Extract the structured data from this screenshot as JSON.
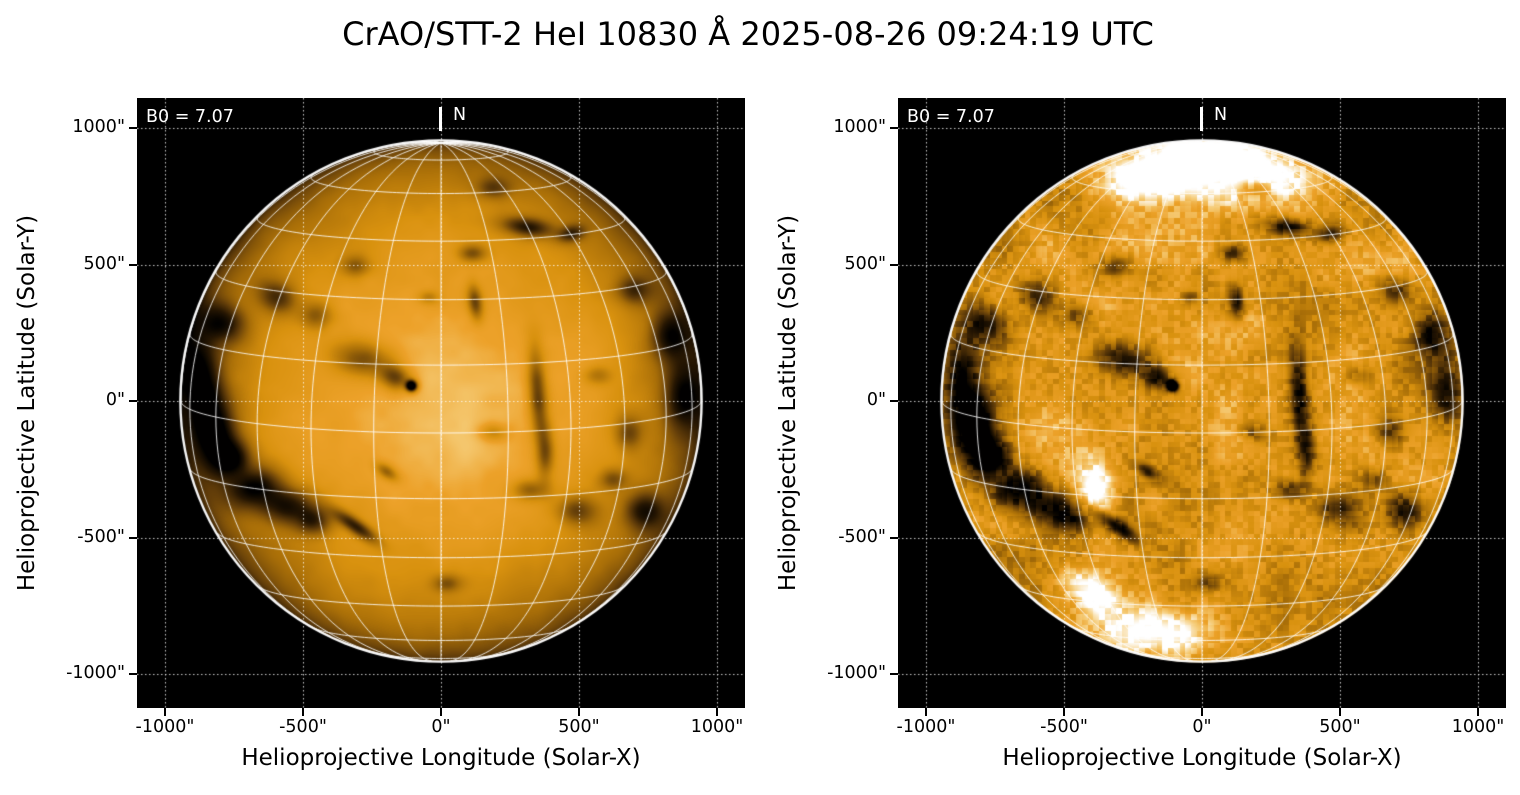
{
  "figure": {
    "title": "CrAO/STT-2 HeI 10830 Å 2025-08-26 09:24:19 UTC",
    "background_color": "#ffffff",
    "plot_background_color": "#000000"
  },
  "axes": {
    "x_label": "Helioprojective Longitude (Solar-X)",
    "y_label": "Helioprojective Latitude (Solar-Y)",
    "x_tick_labels": [
      "-1000\"",
      "-500\"",
      "0\"",
      "500\"",
      "1000\""
    ],
    "y_tick_labels": [
      "1000\"",
      "500\"",
      "0\"",
      "-500\"",
      "-1000\""
    ]
  },
  "panels": [
    {
      "name": "HeI 10830 full disk, limb-darkened view",
      "annotation_b0": "B0 = 7.07",
      "north_label": "N"
    },
    {
      "name": "HeI 10830 full disk, contrast-enhanced (limb darkening removed)",
      "annotation_b0": "B0 = 7.07",
      "north_label": "N"
    }
  ],
  "colors": {
    "disk_orange": "#e89b1e",
    "disk_limb_brown": "#5f3c05",
    "bright_plage": "#f7e7c8",
    "dark_filament": "#0d0903",
    "graticule_white": "#ffffff"
  },
  "chart_data": {
    "type": "heatmap",
    "title": "CrAO/STT-2 HeI 10830 Å 2025-08-26 09:24:19 UTC",
    "observatory_instrument": "CrAO/STT-2",
    "wavelength": "HeI 10830 Å",
    "datetime_utc": "2025-08-26 09:24:19 UTC",
    "B0_deg": 7.07,
    "north_marker": "N",
    "legend": "none",
    "grid": "dotted white helioprojective gridlines at every tick; solid white heliographic graticule (15 deg spacing) over the solar disk; white limb circle",
    "panels": [
      {
        "description": "Solar full-disk HeI 10830 Å image with natural limb darkening; orange disk, scattered dark filaments/active-region absorption patches",
        "xlabel": "Helioprojective Longitude (Solar-X)",
        "ylabel": "Helioprojective Latitude (Solar-Y)",
        "xlim_arcsec": [
          -1105,
          1105
        ],
        "ylim_arcsec": [
          -1105,
          1105
        ],
        "x_ticks_arcsec": [
          -1000,
          -500,
          0,
          500,
          1000
        ],
        "y_ticks_arcsec": [
          -1000,
          -500,
          0,
          500,
          1000
        ],
        "solar_disk_radius_arcsec": 950
      },
      {
        "description": "Same disk with limb darkening removed / contrast enhanced; strongly mottled texture, bright polar and plage regions, prominent dark filaments",
        "xlabel": "Helioprojective Longitude (Solar-X)",
        "ylabel": "Helioprojective Latitude (Solar-Y)",
        "xlim_arcsec": [
          -1105,
          1105
        ],
        "ylim_arcsec": [
          -1105,
          1105
        ],
        "x_ticks_arcsec": [
          -1000,
          -500,
          0,
          500,
          1000
        ],
        "y_ticks_arcsec": [
          -1000,
          -500,
          0,
          500,
          1000
        ],
        "solar_disk_radius_arcsec": 950
      }
    ]
  }
}
